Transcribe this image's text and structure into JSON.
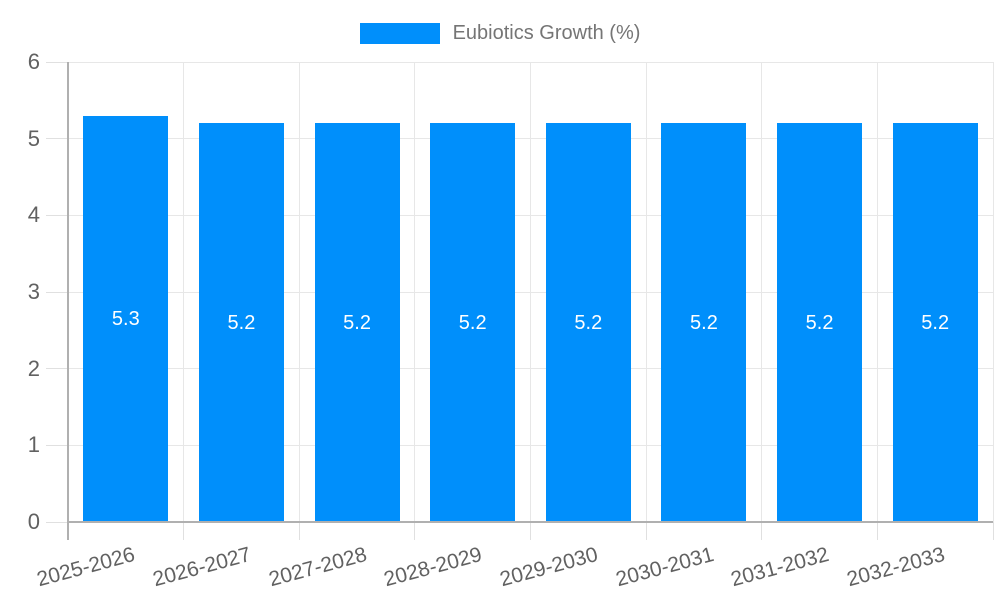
{
  "legend": {
    "label": "Eubiotics Growth (%)"
  },
  "colors": {
    "bar": "#008FFB",
    "grid": "#e7e7e7",
    "axis": "#b0b0b0",
    "tick": "#e0e0e0",
    "axis_label_text": "#616161",
    "legend_text": "#757575",
    "bar_label_text": "#ffffff",
    "background": "#ffffff"
  },
  "chart_data": {
    "type": "bar",
    "title": "",
    "categories": [
      "2025-2026",
      "2026-2027",
      "2027-2028",
      "2028-2029",
      "2029-2030",
      "2030-2031",
      "2031-2032",
      "2032-2033"
    ],
    "series": [
      {
        "name": "Eubiotics Growth (%)",
        "values": [
          5.3,
          5.2,
          5.2,
          5.2,
          5.2,
          5.2,
          5.2,
          5.2
        ]
      }
    ],
    "bar_value_labels": [
      "5.3",
      "5.2",
      "5.2",
      "5.2",
      "5.2",
      "5.2",
      "5.2",
      "5.2"
    ],
    "xlabel": "",
    "ylabel": "",
    "ylim": [
      0,
      6
    ],
    "yticks": [
      0,
      1,
      2,
      3,
      4,
      5,
      6
    ],
    "grid": true,
    "legend_position": "top",
    "x_label_rotation": -15
  }
}
